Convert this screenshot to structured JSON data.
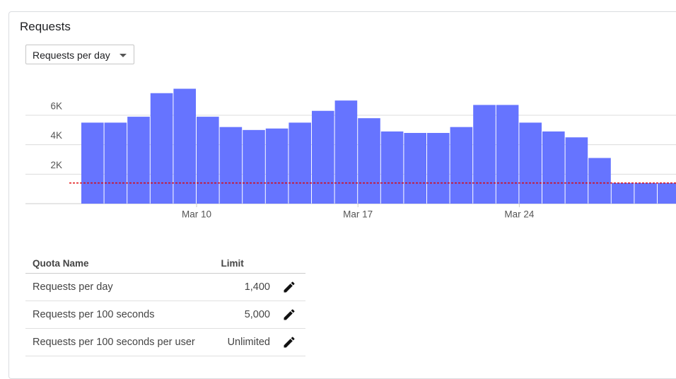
{
  "title": "Requests",
  "dropdown": "Requests per day",
  "chart_data": {
    "type": "bar",
    "categories": [
      null,
      null,
      null,
      null,
      null,
      "Mar 10",
      null,
      null,
      null,
      null,
      null,
      null,
      "Mar 17",
      null,
      null,
      null,
      null,
      null,
      null,
      "Mar 24",
      null,
      null,
      null,
      null,
      null,
      null
    ],
    "values": [
      5500,
      5500,
      5900,
      7500,
      7800,
      5900,
      5200,
      5000,
      5100,
      5500,
      6300,
      7000,
      5800,
      4900,
      4800,
      4800,
      5200,
      6700,
      6700,
      5500,
      4900,
      4500,
      3100,
      1400,
      1400,
      1400
    ],
    "color": "#6674ff",
    "ylim": [
      0,
      8400
    ],
    "yticks": [
      {
        "value": 2000,
        "label": "2K"
      },
      {
        "value": 4000,
        "label": "4K"
      },
      {
        "value": 6000,
        "label": "6K"
      }
    ],
    "grid": true,
    "limit": 1400,
    "limit_color": "#e00000"
  },
  "table": {
    "header": [
      "Quota Name",
      "Limit"
    ],
    "rows": [
      [
        "Requests per day",
        "1,400"
      ],
      [
        "Requests per 100 seconds",
        "5,000"
      ],
      [
        "Requests per 100 seconds per user",
        "Unlimited"
      ]
    ]
  }
}
